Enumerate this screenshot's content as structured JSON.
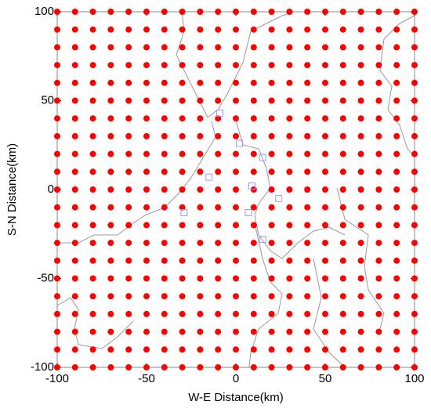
{
  "chart_data": {
    "type": "scatter",
    "xlabel": "W-E Distance(km)",
    "ylabel": "S-N Distance(km)",
    "xlim": [
      -100,
      100
    ],
    "ylim": [
      -100,
      100
    ],
    "xticks": [
      -100,
      -50,
      0,
      50,
      100
    ],
    "yticks": [
      -100,
      -50,
      0,
      50,
      100
    ],
    "series": [
      {
        "color": "#ff0000",
        "marker": "circle",
        "x": [
          -100,
          -90,
          -80,
          -70,
          -60,
          -50,
          -40,
          -30,
          -20,
          -10,
          0,
          10,
          20,
          30,
          40,
          50,
          60,
          70,
          80,
          90,
          100,
          -100,
          -90,
          -80,
          -70,
          -60,
          -50,
          -40,
          -30,
          -20,
          -10,
          0,
          10,
          20,
          30,
          40,
          50,
          60,
          70,
          80,
          90,
          100,
          -100,
          -90,
          -80,
          -70,
          -60,
          -50,
          -40,
          -30,
          -20,
          -10,
          0,
          10,
          20,
          30,
          40,
          50,
          60,
          70,
          80,
          90,
          100,
          -100,
          -90,
          -80,
          -70,
          -60,
          -50,
          -40,
          -30,
          -20,
          -10,
          0,
          10,
          20,
          30,
          40,
          50,
          60,
          70,
          80,
          90,
          100,
          -100,
          -90,
          -80,
          -70,
          -60,
          -50,
          -40,
          -30,
          -20,
          -10,
          0,
          10,
          20,
          30,
          40,
          50,
          60,
          70,
          80,
          90,
          100,
          -100,
          -90,
          -80,
          -70,
          -60,
          -50,
          -40,
          -30,
          -20,
          -10,
          0,
          10,
          20,
          30,
          40,
          50,
          60,
          70,
          80,
          90,
          100,
          -100,
          -90,
          -80,
          -70,
          -60,
          -50,
          -40,
          -30,
          -20,
          -10,
          0,
          10,
          20,
          30,
          40,
          50,
          60,
          70,
          80,
          90,
          100,
          -100,
          -90,
          -80,
          -70,
          -60,
          -50,
          -40,
          -30,
          -20,
          -10,
          0,
          10,
          20,
          30,
          40,
          50,
          60,
          70,
          80,
          90,
          100,
          -100,
          -90,
          -80,
          -70,
          -60,
          -50,
          -40,
          -30,
          -20,
          -10,
          0,
          10,
          20,
          30,
          40,
          50,
          60,
          70,
          80,
          90,
          100,
          -100,
          -90,
          -80,
          -70,
          -60,
          -50,
          -40,
          -30,
          -20,
          -10,
          0,
          10,
          20,
          30,
          40,
          50,
          60,
          70,
          80,
          90,
          100,
          -100,
          -90,
          -80,
          -70,
          -60,
          -50,
          -40,
          -30,
          -20,
          -10,
          0,
          10,
          20,
          30,
          40,
          50,
          60,
          70,
          80,
          90,
          100,
          -100,
          -90,
          -80,
          -70,
          -60,
          -50,
          -40,
          -30,
          -20,
          -10,
          0,
          10,
          20,
          30,
          40,
          50,
          60,
          70,
          80,
          90,
          100,
          -100,
          -90,
          -80,
          -70,
          -60,
          -50,
          -40,
          -30,
          -20,
          -10,
          0,
          10,
          20,
          30,
          40,
          50,
          60,
          70,
          80,
          90,
          100,
          -100,
          -90,
          -80,
          -70,
          -60,
          -50,
          -40,
          -30,
          -20,
          -10,
          0,
          10,
          20,
          30,
          40,
          50,
          60,
          70,
          80,
          90,
          100,
          -100,
          -90,
          -80,
          -70,
          -60,
          -50,
          -40,
          -30,
          -20,
          -10,
          0,
          10,
          20,
          30,
          40,
          50,
          60,
          70,
          80,
          90,
          100,
          -100,
          -90,
          -80,
          -70,
          -60,
          -50,
          -40,
          -30,
          -20,
          -10,
          0,
          10,
          20,
          30,
          40,
          50,
          60,
          70,
          80,
          90,
          100,
          -100,
          -90,
          -80,
          -70,
          -60,
          -50,
          -40,
          -30,
          -20,
          -10,
          0,
          10,
          20,
          30,
          40,
          50,
          60,
          70,
          80,
          90,
          100,
          -100,
          -90,
          -80,
          -70,
          -60,
          -50,
          -40,
          -30,
          -20,
          -10,
          0,
          10,
          20,
          30,
          40,
          50,
          60,
          70,
          80,
          90,
          100,
          -100,
          -90,
          -80,
          -70,
          -60,
          -50,
          -40,
          -30,
          -20,
          -10,
          0,
          10,
          20,
          30,
          40,
          50,
          60,
          70,
          80,
          90,
          100,
          -100,
          -90,
          -80,
          -70,
          -60,
          -50,
          -40,
          -30,
          -20,
          -10,
          0,
          10,
          20,
          30,
          40,
          50,
          60,
          70,
          80,
          90,
          100,
          -100,
          -90,
          -80,
          -70,
          -60,
          -50,
          -40,
          -30,
          -20,
          -10,
          0,
          10,
          20,
          30,
          40,
          50,
          60,
          70,
          80,
          90,
          100
        ],
        "y": [
          100,
          100,
          100,
          100,
          100,
          100,
          100,
          100,
          100,
          100,
          100,
          100,
          100,
          100,
          100,
          100,
          100,
          100,
          100,
          100,
          100,
          90,
          90,
          90,
          90,
          90,
          90,
          90,
          90,
          90,
          90,
          90,
          90,
          90,
          90,
          90,
          90,
          90,
          90,
          90,
          90,
          90,
          80,
          80,
          80,
          80,
          80,
          80,
          80,
          80,
          80,
          80,
          80,
          80,
          80,
          80,
          80,
          80,
          80,
          80,
          80,
          80,
          80,
          70,
          70,
          70,
          70,
          70,
          70,
          70,
          70,
          70,
          70,
          70,
          70,
          70,
          70,
          70,
          70,
          70,
          70,
          70,
          70,
          70,
          60,
          60,
          60,
          60,
          60,
          60,
          60,
          60,
          60,
          60,
          60,
          60,
          60,
          60,
          60,
          60,
          60,
          60,
          60,
          60,
          60,
          50,
          50,
          50,
          50,
          50,
          50,
          50,
          50,
          50,
          50,
          50,
          50,
          50,
          50,
          50,
          50,
          50,
          50,
          50,
          50,
          50,
          40,
          40,
          40,
          40,
          40,
          40,
          40,
          40,
          40,
          40,
          40,
          40,
          40,
          40,
          40,
          40,
          40,
          40,
          40,
          40,
          40,
          30,
          30,
          30,
          30,
          30,
          30,
          30,
          30,
          30,
          30,
          30,
          30,
          30,
          30,
          30,
          30,
          30,
          30,
          30,
          30,
          30,
          20,
          20,
          20,
          20,
          20,
          20,
          20,
          20,
          20,
          20,
          20,
          20,
          20,
          20,
          20,
          20,
          20,
          20,
          20,
          20,
          20,
          10,
          10,
          10,
          10,
          10,
          10,
          10,
          10,
          10,
          10,
          10,
          10,
          10,
          10,
          10,
          10,
          10,
          10,
          10,
          10,
          10,
          0,
          0,
          0,
          0,
          0,
          0,
          0,
          0,
          0,
          0,
          0,
          0,
          0,
          0,
          0,
          0,
          0,
          0,
          0,
          0,
          0,
          -10,
          -10,
          -10,
          -10,
          -10,
          -10,
          -10,
          -10,
          -10,
          -10,
          -10,
          -10,
          -10,
          -10,
          -10,
          -10,
          -10,
          -10,
          -10,
          -10,
          -10,
          -20,
          -20,
          -20,
          -20,
          -20,
          -20,
          -20,
          -20,
          -20,
          -20,
          -20,
          -20,
          -20,
          -20,
          -20,
          -20,
          -20,
          -20,
          -20,
          -20,
          -20,
          -30,
          -30,
          -30,
          -30,
          -30,
          -30,
          -30,
          -30,
          -30,
          -30,
          -30,
          -30,
          -30,
          -30,
          -30,
          -30,
          -30,
          -30,
          -30,
          -30,
          -30,
          -40,
          -40,
          -40,
          -40,
          -40,
          -40,
          -40,
          -40,
          -40,
          -40,
          -40,
          -40,
          -40,
          -40,
          -40,
          -40,
          -40,
          -40,
          -40,
          -40,
          -40,
          -50,
          -50,
          -50,
          -50,
          -50,
          -50,
          -50,
          -50,
          -50,
          -50,
          -50,
          -50,
          -50,
          -50,
          -50,
          -50,
          -50,
          -50,
          -50,
          -50,
          -50,
          -60,
          -60,
          -60,
          -60,
          -60,
          -60,
          -60,
          -60,
          -60,
          -60,
          -60,
          -60,
          -60,
          -60,
          -60,
          -60,
          -60,
          -60,
          -60,
          -60,
          -60,
          -70,
          -70,
          -70,
          -70,
          -70,
          -70,
          -70,
          -70,
          -70,
          -70,
          -70,
          -70,
          -70,
          -70,
          -70,
          -70,
          -70,
          -70,
          -70,
          -70,
          -70,
          -80,
          -80,
          -80,
          -80,
          -80,
          -80,
          -80,
          -80,
          -80,
          -80,
          -80,
          -80,
          -80,
          -80,
          -80,
          -80,
          -80,
          -80,
          -80,
          -80,
          -80,
          -90,
          -90,
          -90,
          -90,
          -90,
          -90,
          -90,
          -90,
          -90,
          -90,
          -90,
          -90,
          -90,
          -90,
          -90,
          -90,
          -90,
          -90,
          -90,
          -90,
          -90,
          -100,
          -100,
          -100,
          -100,
          -100,
          -100,
          -100,
          -100,
          -100,
          -100,
          -100,
          -100,
          -100,
          -100,
          -100,
          -100,
          -100,
          -100,
          -100,
          -100,
          -100
        ]
      },
      {
        "color": "#9999ff",
        "marker": "square",
        "x": [
          -9,
          2,
          15,
          -15,
          9,
          24,
          -29,
          7,
          15
        ],
        "y": [
          43,
          26,
          18,
          7,
          2,
          -5,
          -13,
          -13,
          -28
        ]
      }
    ]
  }
}
